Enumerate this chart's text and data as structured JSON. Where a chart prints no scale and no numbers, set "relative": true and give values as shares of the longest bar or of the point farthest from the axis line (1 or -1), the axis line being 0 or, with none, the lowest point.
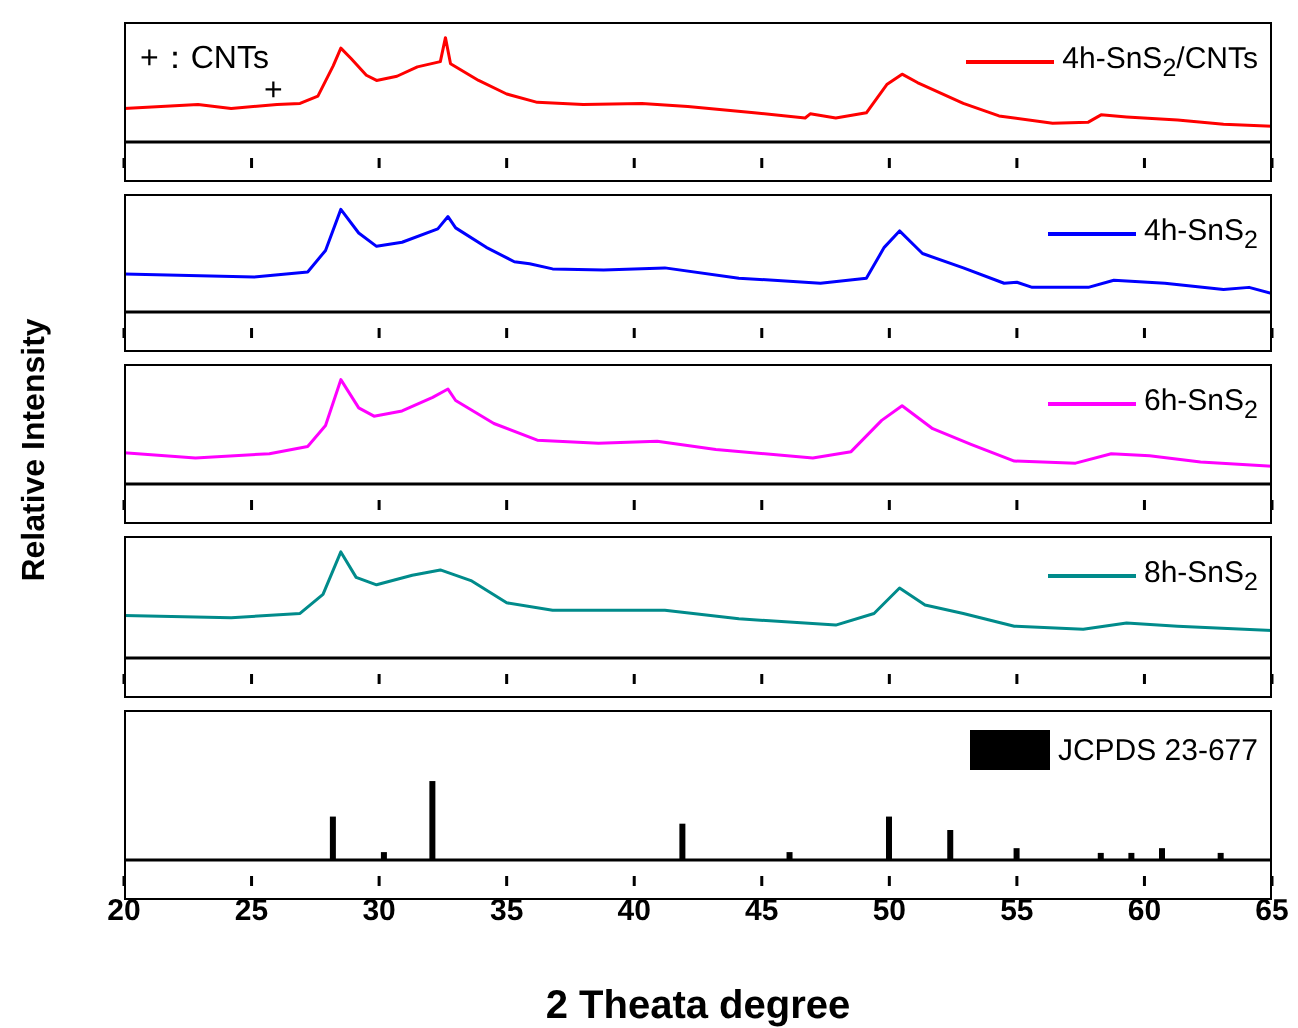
{
  "chart_data": [
    {
      "type": "line",
      "relative": true,
      "xlim": [
        20,
        65
      ],
      "xticks": [
        20,
        25,
        30,
        35,
        40,
        45,
        50,
        55,
        60,
        65
      ],
      "tick_labels": false,
      "legend": "top right",
      "annotations": [
        "+：CNTs",
        "+"
      ],
      "x": [
        20,
        22.9,
        24.2,
        26.0,
        26.9,
        27.6,
        28.2,
        28.5,
        28.9,
        29.5,
        29.9,
        30.7,
        31.5,
        32.4,
        32.6,
        32.8,
        33.9,
        35.0,
        36.2,
        38.0,
        40.3,
        42.1,
        44.7,
        46.7,
        46.9,
        47.9,
        49.1,
        49.9,
        50.5,
        51.1,
        52.9,
        54.3,
        56.4,
        57.8,
        58.3,
        59.3,
        61.3,
        63.1,
        65.0
      ],
      "series": [
        {
          "name": "4h-SnS$_{2}$/CNTs",
          "color": "#ff0000",
          "values": [
            0.32,
            0.36,
            0.32,
            0.36,
            0.37,
            0.44,
            0.73,
            0.9,
            0.8,
            0.64,
            0.59,
            0.63,
            0.72,
            0.77,
            1.0,
            0.75,
            0.59,
            0.46,
            0.38,
            0.36,
            0.37,
            0.34,
            0.28,
            0.23,
            0.27,
            0.23,
            0.28,
            0.55,
            0.65,
            0.57,
            0.37,
            0.25,
            0.18,
            0.19,
            0.26,
            0.24,
            0.21,
            0.17,
            0.15
          ]
        }
      ]
    },
    {
      "type": "line",
      "relative": true,
      "xlim": [
        20,
        65
      ],
      "xticks": [
        20,
        25,
        30,
        35,
        40,
        45,
        50,
        55,
        60,
        65
      ],
      "tick_labels": false,
      "legend": "top right",
      "x": [
        20,
        25.1,
        27.2,
        27.9,
        28.5,
        29.2,
        29.9,
        30.9,
        32.3,
        32.7,
        33.0,
        34.2,
        35.3,
        35.9,
        36.8,
        38.8,
        41.2,
        44.1,
        47.3,
        49.1,
        49.8,
        50.4,
        51.3,
        52.9,
        54.5,
        55.0,
        55.6,
        57.8,
        58.8,
        60.8,
        63.1,
        64.1,
        65
      ],
      "series": [
        {
          "name": "4h-SnS$_{2}$",
          "color": "#0000ff",
          "values": [
            0.37,
            0.34,
            0.39,
            0.6,
            1.0,
            0.77,
            0.64,
            0.68,
            0.81,
            0.93,
            0.82,
            0.63,
            0.49,
            0.47,
            0.42,
            0.41,
            0.43,
            0.33,
            0.28,
            0.33,
            0.63,
            0.79,
            0.57,
            0.43,
            0.28,
            0.29,
            0.24,
            0.24,
            0.31,
            0.28,
            0.22,
            0.24,
            0.18
          ]
        }
      ]
    },
    {
      "type": "line",
      "relative": true,
      "xlim": [
        20,
        65
      ],
      "xticks": [
        20,
        25,
        30,
        35,
        40,
        45,
        50,
        55,
        60,
        65
      ],
      "tick_labels": false,
      "legend": "top right",
      "ylabel": "Relative Intensity",
      "x": [
        20,
        22.8,
        25.7,
        27.2,
        27.9,
        28.5,
        29.2,
        29.8,
        30.9,
        32.1,
        32.7,
        33.0,
        34.5,
        36.2,
        38.6,
        40.9,
        43.2,
        47.0,
        48.5,
        49.7,
        50.5,
        51.7,
        53.2,
        54.9,
        57.3,
        58.7,
        60.2,
        62.2,
        65
      ],
      "series": [
        {
          "name": "6h-SnS$_{2}$",
          "color": "#ff00ff",
          "values": [
            0.3,
            0.25,
            0.29,
            0.36,
            0.56,
            1.0,
            0.73,
            0.65,
            0.7,
            0.83,
            0.91,
            0.8,
            0.58,
            0.42,
            0.39,
            0.41,
            0.33,
            0.25,
            0.31,
            0.61,
            0.75,
            0.53,
            0.38,
            0.22,
            0.2,
            0.29,
            0.27,
            0.21,
            0.17
          ]
        }
      ]
    },
    {
      "type": "line",
      "relative": true,
      "xlim": [
        20,
        65
      ],
      "xticks": [
        20,
        25,
        30,
        35,
        40,
        45,
        50,
        55,
        60,
        65
      ],
      "tick_labels": false,
      "legend": "top right",
      "x": [
        20,
        24.2,
        26.9,
        27.8,
        28.5,
        29.1,
        29.9,
        31.3,
        32.4,
        33.6,
        35.0,
        36.8,
        41.2,
        44.1,
        47.9,
        49.4,
        50.4,
        51.4,
        52.9,
        54.9,
        57.6,
        59.3,
        61.3,
        65
      ],
      "series": [
        {
          "name": "8h-SnS$_{2}$",
          "color": "#008b8b",
          "values": [
            0.4,
            0.38,
            0.42,
            0.6,
            1.0,
            0.76,
            0.69,
            0.78,
            0.83,
            0.73,
            0.52,
            0.45,
            0.45,
            0.37,
            0.31,
            0.42,
            0.66,
            0.5,
            0.42,
            0.3,
            0.27,
            0.33,
            0.3,
            0.26
          ]
        }
      ]
    },
    {
      "type": "bar",
      "relative": true,
      "xlim": [
        20,
        65
      ],
      "xticks": [
        20,
        25,
        30,
        35,
        40,
        45,
        50,
        55,
        60,
        65
      ],
      "tick_labels": "x",
      "legend": "top right",
      "xlabel": "2 Theata degree",
      "x": [
        28.2,
        30.2,
        32.1,
        41.9,
        46.1,
        50.0,
        52.4,
        55.0,
        58.3,
        59.5,
        60.7,
        63.0
      ],
      "series": [
        {
          "name": "JCPDS 23-677",
          "color": "#000000",
          "values": [
            0.55,
            0.1,
            1.0,
            0.46,
            0.1,
            0.55,
            0.38,
            0.15,
            0.09,
            0.09,
            0.15,
            0.09
          ]
        }
      ]
    }
  ]
}
